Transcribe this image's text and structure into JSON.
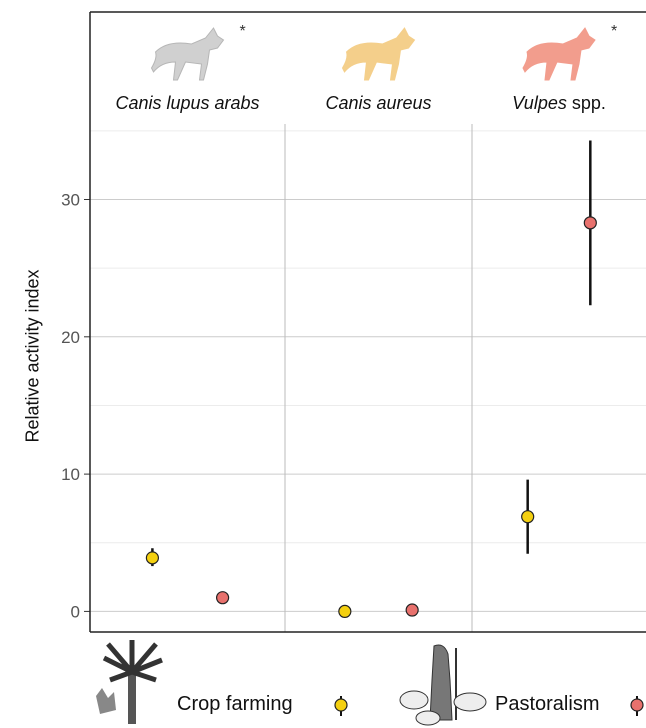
{
  "chart_data": {
    "type": "scatter",
    "ylabel": "Relative activity index",
    "xlabel": "",
    "ylim": [
      -1.5,
      35.5
    ],
    "yticks": [
      0,
      10,
      20,
      30
    ],
    "grid": true,
    "panels": [
      {
        "id": "canis-lupus-arabs",
        "title_italic": "Canis lupus arabs",
        "title_plain": "",
        "title_color": "#111111",
        "icon": "wolf-icon",
        "icon_color": "#c8c8c8",
        "asterisk": "*"
      },
      {
        "id": "canis-aureus",
        "title_italic": "Canis aureus",
        "title_plain": "",
        "title_color": "#111111",
        "icon": "jackal-icon",
        "icon_color": "#f3c777",
        "asterisk": ""
      },
      {
        "id": "vulpes",
        "title_italic": "Vulpes",
        "title_plain": " spp.",
        "title_color": "#111111",
        "icon": "fox-icon",
        "icon_color": "#f08c7a",
        "asterisk": "*"
      }
    ],
    "series": [
      {
        "name": "Crop farming",
        "color": "#f4d010",
        "values": [
          {
            "panel": 0,
            "y": 3.9,
            "lo": 3.3,
            "hi": 4.6
          },
          {
            "panel": 1,
            "y": 0.0,
            "lo": 0.0,
            "hi": 0.0
          },
          {
            "panel": 2,
            "y": 6.9,
            "lo": 4.2,
            "hi": 9.6
          }
        ]
      },
      {
        "name": "Pastoralism",
        "color": "#e8716d",
        "values": [
          {
            "panel": 0,
            "y": 1.0,
            "lo": 1.0,
            "hi": 1.0
          },
          {
            "panel": 1,
            "y": 0.1,
            "lo": 0.1,
            "hi": 0.1
          },
          {
            "panel": 2,
            "y": 28.3,
            "lo": 22.3,
            "hi": 34.3
          }
        ]
      }
    ],
    "legend": {
      "position": "bottom"
    }
  },
  "legend_icons": [
    "palm-tree-icon",
    "shepherd-with-sheep-icon"
  ]
}
